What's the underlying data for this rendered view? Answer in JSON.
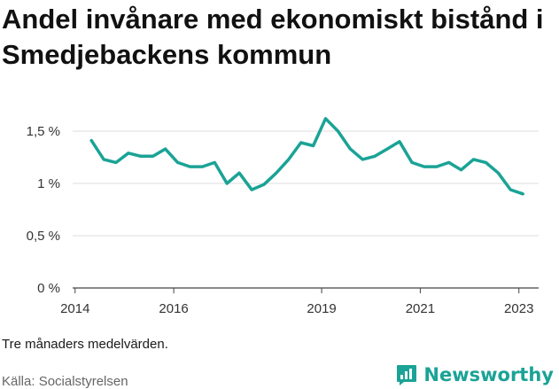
{
  "title": "Andel invånare med ekonomiskt bistånd i Smedjebackens kommun",
  "note": "Tre månaders medelvärden.",
  "source": "Källa: Socialstyrelsen",
  "brand": {
    "name": "Newsworthy",
    "icon": "bar-chart-logo-icon",
    "color": "#1aa396"
  },
  "chart_data": {
    "type": "line",
    "title": "Andel invånare med ekonomiskt bistånd i Smedjebackens kommun",
    "xlabel": "",
    "ylabel": "",
    "ylim": [
      0,
      1.5
    ],
    "xlim": [
      2013.95,
      2023.4
    ],
    "y_ticks": [
      {
        "value": 0,
        "label": "0 %"
      },
      {
        "value": 0.5,
        "label": "0,5 %"
      },
      {
        "value": 1,
        "label": "1 %"
      },
      {
        "value": 1.5,
        "label": "1,5 %"
      }
    ],
    "x_ticks": [
      {
        "value": 2014,
        "label": "2014"
      },
      {
        "value": 2016,
        "label": "2016"
      },
      {
        "value": 2019,
        "label": "2019"
      },
      {
        "value": 2021,
        "label": "2021"
      },
      {
        "value": 2023,
        "label": "2023"
      }
    ],
    "grid": true,
    "legend": "none",
    "series": [
      {
        "color": "#1aa396",
        "points": [
          [
            2014.33,
            1.41
          ],
          [
            2014.58,
            1.23
          ],
          [
            2014.83,
            1.2
          ],
          [
            2015.08,
            1.29
          ],
          [
            2015.33,
            1.26
          ],
          [
            2015.58,
            1.26
          ],
          [
            2015.83,
            1.33
          ],
          [
            2016.08,
            1.2
          ],
          [
            2016.33,
            1.16
          ],
          [
            2016.58,
            1.16
          ],
          [
            2016.83,
            1.2
          ],
          [
            2017.08,
            1.0
          ],
          [
            2017.33,
            1.1
          ],
          [
            2017.58,
            0.94
          ],
          [
            2017.83,
            0.99
          ],
          [
            2018.08,
            1.1
          ],
          [
            2018.33,
            1.23
          ],
          [
            2018.58,
            1.39
          ],
          [
            2018.83,
            1.36
          ],
          [
            2019.08,
            1.62
          ],
          [
            2019.33,
            1.5
          ],
          [
            2019.58,
            1.33
          ],
          [
            2019.83,
            1.23
          ],
          [
            2020.08,
            1.26
          ],
          [
            2020.33,
            1.33
          ],
          [
            2020.58,
            1.4
          ],
          [
            2020.83,
            1.2
          ],
          [
            2021.08,
            1.16
          ],
          [
            2021.33,
            1.16
          ],
          [
            2021.58,
            1.2
          ],
          [
            2021.83,
            1.13
          ],
          [
            2022.08,
            1.23
          ],
          [
            2022.33,
            1.2
          ],
          [
            2022.58,
            1.1
          ],
          [
            2022.83,
            0.94
          ],
          [
            2023.08,
            0.9
          ]
        ]
      }
    ]
  }
}
